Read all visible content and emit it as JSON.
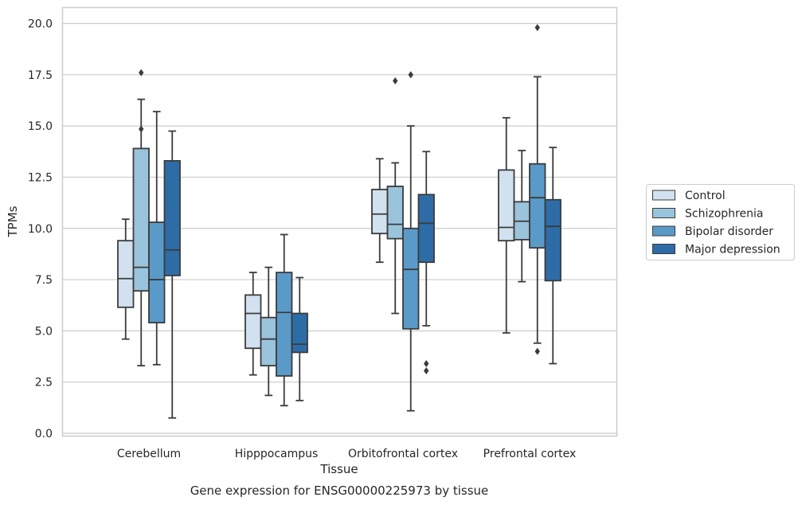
{
  "caption": "Gene expression for ENSG00000225973 by tissue",
  "chart_data": {
    "type": "boxplot",
    "xlabel": "Tissue",
    "ylabel": "TPMs",
    "ylim": [
      -0.2,
      20.7
    ],
    "yticks": [
      0.0,
      2.5,
      5.0,
      7.5,
      10.0,
      12.5,
      15.0,
      17.5,
      20.0
    ],
    "ytick_labels": [
      "0.0",
      "2.5",
      "5.0",
      "7.5",
      "10.0",
      "12.5",
      "15.0",
      "17.5",
      "20.0"
    ],
    "grid": "horizontal",
    "legend_position": "outside right",
    "categories": [
      "Cerebellum",
      "Hipppocampus",
      "Orbitofrontal cortex",
      "Prefrontal cortex"
    ],
    "series": [
      {
        "name": "Control",
        "color": "#d2e1f0",
        "boxes": [
          {
            "whislo": 4.6,
            "q1": 6.15,
            "med": 7.55,
            "q3": 9.4,
            "whishi": 10.45,
            "fliers": []
          },
          {
            "whislo": 2.85,
            "q1": 4.15,
            "med": 5.85,
            "q3": 6.75,
            "whishi": 7.85,
            "fliers": []
          },
          {
            "whislo": 8.35,
            "q1": 9.75,
            "med": 10.7,
            "q3": 11.9,
            "whishi": 13.4,
            "fliers": []
          },
          {
            "whislo": 4.9,
            "q1": 9.4,
            "med": 10.05,
            "q3": 12.85,
            "whishi": 15.4,
            "fliers": []
          }
        ]
      },
      {
        "name": "Schizophrenia",
        "color": "#9ac3dc",
        "boxes": [
          {
            "whislo": 3.3,
            "q1": 6.95,
            "med": 8.1,
            "q3": 13.9,
            "whishi": 16.3,
            "fliers": [
              14.85,
              17.6
            ]
          },
          {
            "whislo": 1.85,
            "q1": 3.3,
            "med": 4.6,
            "q3": 5.65,
            "whishi": 8.1,
            "fliers": []
          },
          {
            "whislo": 5.85,
            "q1": 9.5,
            "med": 10.2,
            "q3": 12.05,
            "whishi": 13.2,
            "fliers": [
              17.2
            ]
          },
          {
            "whislo": 7.4,
            "q1": 9.45,
            "med": 10.35,
            "q3": 11.3,
            "whishi": 13.8,
            "fliers": []
          }
        ]
      },
      {
        "name": "Bipolar disorder",
        "color": "#5a9ac9",
        "boxes": [
          {
            "whislo": 3.35,
            "q1": 5.4,
            "med": 7.5,
            "q3": 10.3,
            "whishi": 15.7,
            "fliers": []
          },
          {
            "whislo": 1.35,
            "q1": 2.8,
            "med": 5.9,
            "q3": 7.85,
            "whishi": 9.7,
            "fliers": []
          },
          {
            "whislo": 1.1,
            "q1": 5.1,
            "med": 8.0,
            "q3": 10.0,
            "whishi": 15.0,
            "fliers": [
              17.5
            ]
          },
          {
            "whislo": 4.4,
            "q1": 9.05,
            "med": 11.5,
            "q3": 13.15,
            "whishi": 17.4,
            "fliers": [
              4.0,
              19.8
            ]
          }
        ]
      },
      {
        "name": "Major depression",
        "color": "#2e6ca8",
        "boxes": [
          {
            "whislo": 0.75,
            "q1": 7.7,
            "med": 8.95,
            "q3": 13.3,
            "whishi": 14.75,
            "fliers": []
          },
          {
            "whislo": 1.6,
            "q1": 3.95,
            "med": 4.35,
            "q3": 5.85,
            "whishi": 7.6,
            "fliers": []
          },
          {
            "whislo": 5.25,
            "q1": 8.35,
            "med": 10.25,
            "q3": 11.65,
            "whishi": 13.75,
            "fliers": [
              3.05,
              3.4
            ]
          },
          {
            "whislo": 3.4,
            "q1": 7.45,
            "med": 10.1,
            "q3": 11.4,
            "whishi": 13.95,
            "fliers": []
          }
        ]
      }
    ]
  }
}
